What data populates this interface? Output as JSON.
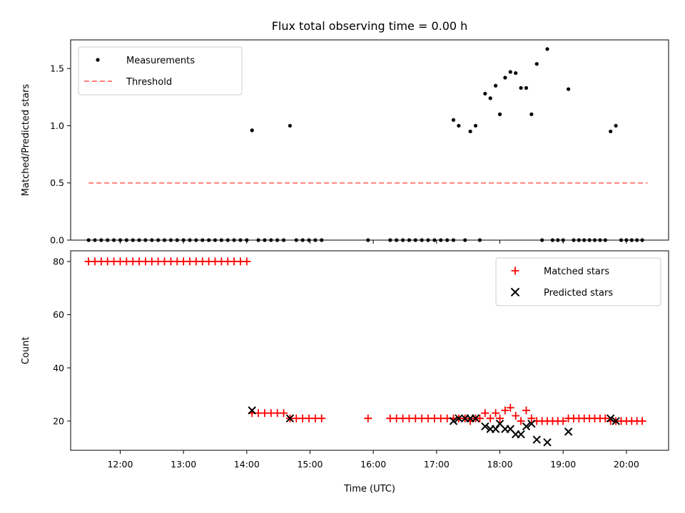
{
  "chart_data": {
    "title": "Flux total observing time = 0.00 h",
    "xlabel": "Time (UTC)",
    "x_ticks": [
      "12:00",
      "13:00",
      "14:00",
      "15:00",
      "16:00",
      "17:00",
      "18:00",
      "19:00",
      "20:00"
    ],
    "xlim": [
      "11:13",
      "20:40"
    ],
    "panels": [
      {
        "type": "scatter",
        "ylabel": "Matched/Predicted stars",
        "ylim": [
          0,
          1.75
        ],
        "y_ticks": [
          "0.0",
          "0.5",
          "1.0",
          "1.5"
        ],
        "legend_position": "top-left",
        "series": [
          {
            "name": "Measurements",
            "marker": "dot",
            "color": "#000000",
            "points": [
              [
                "11:30",
                0
              ],
              [
                "11:36",
                0
              ],
              [
                "11:42",
                0
              ],
              [
                "11:48",
                0
              ],
              [
                "11:54",
                0
              ],
              [
                "12:00",
                0
              ],
              [
                "12:06",
                0
              ],
              [
                "12:12",
                0
              ],
              [
                "12:18",
                0
              ],
              [
                "12:24",
                0
              ],
              [
                "12:30",
                0
              ],
              [
                "12:36",
                0
              ],
              [
                "12:42",
                0
              ],
              [
                "12:48",
                0
              ],
              [
                "12:54",
                0
              ],
              [
                "13:00",
                0
              ],
              [
                "13:06",
                0
              ],
              [
                "13:12",
                0
              ],
              [
                "13:18",
                0
              ],
              [
                "13:24",
                0
              ],
              [
                "13:30",
                0
              ],
              [
                "13:36",
                0
              ],
              [
                "13:42",
                0
              ],
              [
                "13:48",
                0
              ],
              [
                "13:54",
                0
              ],
              [
                "14:00",
                0
              ],
              [
                "14:05",
                0.96
              ],
              [
                "14:11",
                0
              ],
              [
                "14:17",
                0
              ],
              [
                "14:23",
                0
              ],
              [
                "14:29",
                0
              ],
              [
                "14:35",
                0
              ],
              [
                "14:41",
                1.0
              ],
              [
                "14:47",
                0
              ],
              [
                "14:53",
                0
              ],
              [
                "14:59",
                0
              ],
              [
                "15:05",
                0
              ],
              [
                "15:11",
                0
              ],
              [
                "15:55",
                0
              ],
              [
                "16:16",
                0
              ],
              [
                "16:22",
                0
              ],
              [
                "16:28",
                0
              ],
              [
                "16:34",
                0
              ],
              [
                "16:40",
                0
              ],
              [
                "16:46",
                0
              ],
              [
                "16:52",
                0
              ],
              [
                "16:58",
                0
              ],
              [
                "17:04",
                0
              ],
              [
                "17:10",
                0
              ],
              [
                "17:16",
                0
              ],
              [
                "17:16",
                1.05
              ],
              [
                "17:21",
                1.0
              ],
              [
                "17:27",
                0
              ],
              [
                "17:32",
                0.95
              ],
              [
                "17:37",
                1.0
              ],
              [
                "17:41",
                0
              ],
              [
                "17:46",
                1.28
              ],
              [
                "17:51",
                1.24
              ],
              [
                "17:56",
                1.35
              ],
              [
                "18:00",
                1.1
              ],
              [
                "18:05",
                1.42
              ],
              [
                "18:10",
                1.47
              ],
              [
                "18:15",
                1.46
              ],
              [
                "18:20",
                1.33
              ],
              [
                "18:25",
                1.33
              ],
              [
                "18:30",
                1.1
              ],
              [
                "18:35",
                1.54
              ],
              [
                "18:40",
                0
              ],
              [
                "18:45",
                1.67
              ],
              [
                "18:50",
                0
              ],
              [
                "18:55",
                0
              ],
              [
                "19:00",
                0
              ],
              [
                "19:05",
                1.32
              ],
              [
                "19:10",
                0
              ],
              [
                "19:15",
                0
              ],
              [
                "19:20",
                0
              ],
              [
                "19:25",
                0
              ],
              [
                "19:30",
                0
              ],
              [
                "19:35",
                0
              ],
              [
                "19:40",
                0
              ],
              [
                "19:45",
                0.95
              ],
              [
                "19:50",
                1.0
              ],
              [
                "19:55",
                0
              ],
              [
                "20:00",
                0
              ],
              [
                "20:05",
                0
              ],
              [
                "20:10",
                0
              ],
              [
                "20:15",
                0
              ]
            ]
          },
          {
            "name": "Threshold",
            "marker": "dashed-line",
            "color": "#ff7f7f",
            "points": [
              [
                "11:30",
                0.5
              ],
              [
                "20:20",
                0.5
              ]
            ]
          }
        ]
      },
      {
        "type": "scatter",
        "ylabel": "Count",
        "ylim": [
          9,
          84
        ],
        "y_ticks": [
          "20",
          "40",
          "60",
          "80"
        ],
        "legend_position": "top-right",
        "series": [
          {
            "name": "Matched stars",
            "marker": "plus",
            "color": "#ff0000",
            "points": [
              [
                "11:30",
                80
              ],
              [
                "11:36",
                80
              ],
              [
                "11:42",
                80
              ],
              [
                "11:48",
                80
              ],
              [
                "11:54",
                80
              ],
              [
                "12:00",
                80
              ],
              [
                "12:06",
                80
              ],
              [
                "12:12",
                80
              ],
              [
                "12:18",
                80
              ],
              [
                "12:24",
                80
              ],
              [
                "12:30",
                80
              ],
              [
                "12:36",
                80
              ],
              [
                "12:42",
                80
              ],
              [
                "12:48",
                80
              ],
              [
                "12:54",
                80
              ],
              [
                "13:00",
                80
              ],
              [
                "13:06",
                80
              ],
              [
                "13:12",
                80
              ],
              [
                "13:18",
                80
              ],
              [
                "13:24",
                80
              ],
              [
                "13:30",
                80
              ],
              [
                "13:36",
                80
              ],
              [
                "13:42",
                80
              ],
              [
                "13:48",
                80
              ],
              [
                "13:54",
                80
              ],
              [
                "14:00",
                80
              ],
              [
                "14:05",
                23
              ],
              [
                "14:11",
                23
              ],
              [
                "14:17",
                23
              ],
              [
                "14:23",
                23
              ],
              [
                "14:29",
                23
              ],
              [
                "14:35",
                23
              ],
              [
                "14:41",
                21
              ],
              [
                "14:47",
                21
              ],
              [
                "14:53",
                21
              ],
              [
                "14:59",
                21
              ],
              [
                "15:05",
                21
              ],
              [
                "15:11",
                21
              ],
              [
                "15:55",
                21
              ],
              [
                "16:16",
                21
              ],
              [
                "16:22",
                21
              ],
              [
                "16:28",
                21
              ],
              [
                "16:34",
                21
              ],
              [
                "16:40",
                21
              ],
              [
                "16:46",
                21
              ],
              [
                "16:52",
                21
              ],
              [
                "16:58",
                21
              ],
              [
                "17:04",
                21
              ],
              [
                "17:10",
                21
              ],
              [
                "17:16",
                21
              ],
              [
                "17:21",
                21
              ],
              [
                "17:27",
                21
              ],
              [
                "17:32",
                20
              ],
              [
                "17:37",
                21
              ],
              [
                "17:41",
                21
              ],
              [
                "17:46",
                23
              ],
              [
                "17:51",
                21
              ],
              [
                "17:56",
                23
              ],
              [
                "18:00",
                21
              ],
              [
                "18:05",
                24
              ],
              [
                "18:10",
                25
              ],
              [
                "18:15",
                22
              ],
              [
                "18:20",
                20
              ],
              [
                "18:25",
                24
              ],
              [
                "18:30",
                21
              ],
              [
                "18:35",
                20
              ],
              [
                "18:40",
                20
              ],
              [
                "18:45",
                20
              ],
              [
                "18:50",
                20
              ],
              [
                "18:55",
                20
              ],
              [
                "19:00",
                20
              ],
              [
                "19:05",
                21
              ],
              [
                "19:10",
                21
              ],
              [
                "19:15",
                21
              ],
              [
                "19:20",
                21
              ],
              [
                "19:25",
                21
              ],
              [
                "19:30",
                21
              ],
              [
                "19:35",
                21
              ],
              [
                "19:40",
                21
              ],
              [
                "19:45",
                20
              ],
              [
                "19:50",
                20
              ],
              [
                "19:55",
                20
              ],
              [
                "20:00",
                20
              ],
              [
                "20:05",
                20
              ],
              [
                "20:10",
                20
              ],
              [
                "20:15",
                20
              ]
            ]
          },
          {
            "name": "Predicted stars",
            "marker": "x",
            "color": "#000000",
            "points": [
              [
                "14:05",
                24
              ],
              [
                "14:41",
                21
              ],
              [
                "17:16",
                20
              ],
              [
                "17:21",
                21
              ],
              [
                "17:27",
                21
              ],
              [
                "17:32",
                21
              ],
              [
                "17:37",
                21
              ],
              [
                "17:46",
                18
              ],
              [
                "17:51",
                17
              ],
              [
                "17:56",
                17
              ],
              [
                "18:00",
                19
              ],
              [
                "18:05",
                17
              ],
              [
                "18:10",
                17
              ],
              [
                "18:15",
                15
              ],
              [
                "18:20",
                15
              ],
              [
                "18:25",
                18
              ],
              [
                "18:30",
                19
              ],
              [
                "18:35",
                13
              ],
              [
                "18:45",
                12
              ],
              [
                "19:05",
                16
              ],
              [
                "19:45",
                21
              ],
              [
                "19:50",
                20
              ]
            ]
          }
        ]
      }
    ]
  }
}
